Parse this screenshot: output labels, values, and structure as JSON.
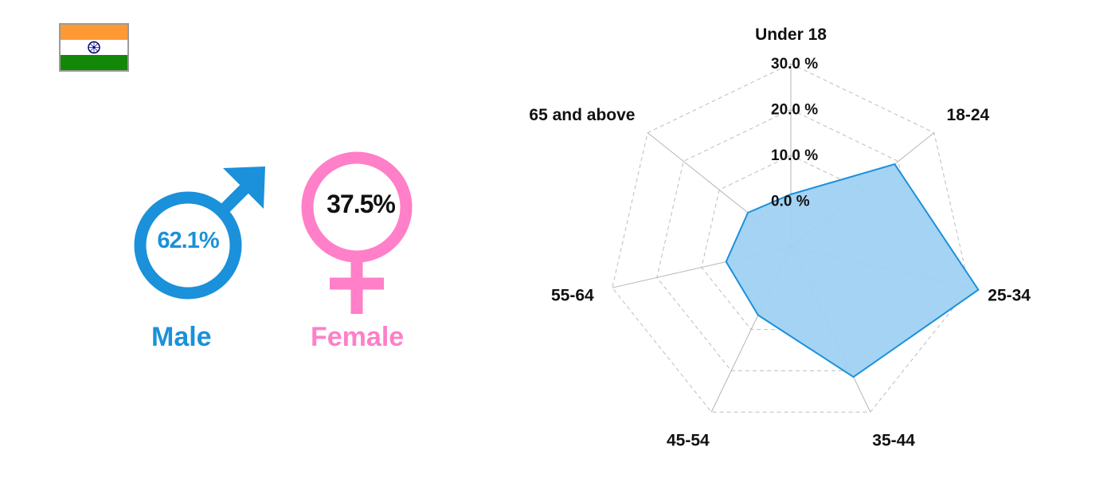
{
  "flag": {
    "icon": "india-flag-icon",
    "colors": {
      "saffron": "#ff9933",
      "white": "#ffffff",
      "green": "#138808",
      "chakra": "#000080"
    }
  },
  "gender": {
    "male": {
      "label": "Male",
      "value_text": "62.1%",
      "value": 62.1,
      "color": "#1a91da",
      "icon": "male-symbol-icon"
    },
    "female": {
      "label": "Female",
      "value_text": "37.5%",
      "value": 37.5,
      "color": "#ff7fc8",
      "icon": "female-symbol-icon"
    }
  },
  "chart_data": {
    "type": "radar",
    "title": "",
    "categories": [
      "Under 18",
      "18-24",
      "25-34",
      "35-44",
      "45-54",
      "55-64",
      "65 and above"
    ],
    "values": [
      1.5,
      19.0,
      32.0,
      21.5,
      6.5,
      4.5,
      2.0
    ],
    "ticks": [
      0,
      10,
      20,
      30
    ],
    "tick_labels": [
      "0.0  %",
      "10.0 %",
      "20.0 %",
      "30.0 %"
    ],
    "rmin": -10,
    "rmax": 30,
    "fill_color": "#9fd1f3",
    "line_color": "#1a91da",
    "grid": true
  }
}
